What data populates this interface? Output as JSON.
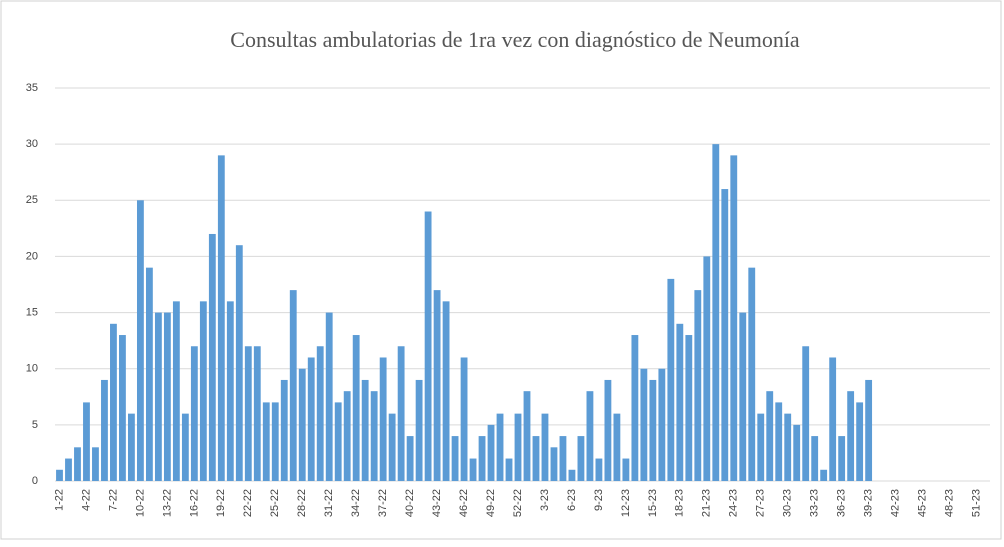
{
  "chart_data": {
    "type": "bar",
    "title": "Consultas ambulatorias de 1ra vez con diagnóstico de Neumonía",
    "categories": [
      "1-22",
      null,
      null,
      "4-22",
      null,
      null,
      "7-22",
      null,
      null,
      "10-22",
      null,
      null,
      "13-22",
      null,
      null,
      "16-22",
      null,
      null,
      "19-22",
      null,
      null,
      "22-22",
      null,
      null,
      "25-22",
      null,
      null,
      "28-22",
      null,
      null,
      "31-22",
      null,
      null,
      "34-22",
      null,
      null,
      "37-22",
      null,
      null,
      "40-22",
      null,
      null,
      "43-22",
      null,
      null,
      "46-22",
      null,
      null,
      "49-22",
      null,
      null,
      "52-22",
      null,
      null,
      "3-23",
      null,
      null,
      "6-23",
      null,
      null,
      "9-23",
      null,
      null,
      "12-23",
      null,
      null,
      "15-23",
      null,
      null,
      "18-23",
      null,
      null,
      "21-23",
      null,
      null,
      "24-23",
      null,
      null,
      "27-23",
      null,
      null,
      "30-23",
      null,
      null,
      "33-23",
      null,
      null,
      "36-23",
      null,
      null,
      "39-23",
      null,
      null,
      "42-23",
      null,
      null,
      "45-23",
      null,
      null,
      "48-23",
      null,
      null,
      "51-23",
      null
    ],
    "values": [
      1,
      2,
      3,
      7,
      3,
      9,
      14,
      13,
      6,
      25,
      19,
      15,
      15,
      16,
      6,
      12,
      16,
      22,
      29,
      16,
      21,
      12,
      12,
      7,
      7,
      9,
      17,
      10,
      11,
      12,
      15,
      7,
      8,
      13,
      9,
      8,
      11,
      6,
      12,
      4,
      9,
      24,
      17,
      16,
      4,
      11,
      2,
      4,
      5,
      6,
      2,
      6,
      8,
      4,
      6,
      3,
      4,
      1,
      4,
      8,
      2,
      9,
      6,
      2,
      13,
      10,
      9,
      10,
      18,
      14,
      13,
      17,
      20,
      30,
      26,
      29,
      15,
      19,
      6,
      8,
      7,
      6,
      5,
      12,
      4,
      1,
      11,
      4,
      8,
      7,
      9,
      null,
      null,
      null,
      null,
      null,
      null,
      null,
      null,
      null,
      null,
      null,
      null,
      null
    ],
    "color": "#5b9bd5",
    "ylim": [
      0,
      35
    ],
    "yticks": [
      0,
      5,
      10,
      15,
      20,
      25,
      30,
      35
    ],
    "grid": true
  }
}
